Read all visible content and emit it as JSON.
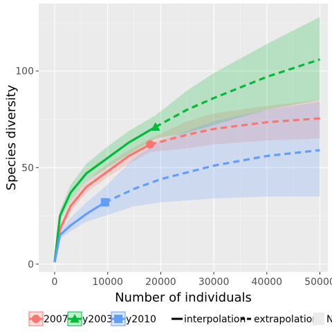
{
  "chart_data": {
    "type": "line",
    "xlabel": "Number of individuals",
    "ylabel": "Species diversity",
    "xlim": [
      -3000,
      51500
    ],
    "ylim": [
      -4,
      135
    ],
    "xticks": [
      0,
      10000,
      20000,
      30000,
      40000,
      50000
    ],
    "xtick_labels": [
      "0",
      "10000",
      "20000",
      "30000",
      "40000",
      "50000"
    ],
    "yticks": [
      0,
      50,
      100
    ],
    "ytick_labels": [
      "0",
      "50",
      "100"
    ],
    "grid": true,
    "legend_position": "bottom",
    "series": [
      {
        "name": "2007",
        "color": "#f8766d",
        "marker": "circle",
        "observed": {
          "x": 18000,
          "y": 62
        },
        "interpolation": [
          [
            0,
            1
          ],
          [
            1000,
            18
          ],
          [
            3000,
            30
          ],
          [
            6000,
            40
          ],
          [
            10000,
            48
          ],
          [
            14000,
            56
          ],
          [
            18000,
            62
          ]
        ],
        "extrapolation": [
          [
            18000,
            62
          ],
          [
            25000,
            67
          ],
          [
            30000,
            70
          ],
          [
            40000,
            73.5
          ],
          [
            50000,
            75.5
          ]
        ],
        "ci_upper": [
          [
            0,
            2
          ],
          [
            1000,
            20
          ],
          [
            3000,
            33
          ],
          [
            6000,
            43
          ],
          [
            10000,
            52
          ],
          [
            14000,
            59
          ],
          [
            18000,
            65
          ],
          [
            25000,
            74
          ],
          [
            30000,
            78
          ],
          [
            40000,
            82
          ],
          [
            50000,
            85
          ]
        ],
        "ci_lower": [
          [
            0,
            0
          ],
          [
            1000,
            16
          ],
          [
            3000,
            27
          ],
          [
            6000,
            37
          ],
          [
            10000,
            45
          ],
          [
            14000,
            52
          ],
          [
            18000,
            58
          ],
          [
            25000,
            60
          ],
          [
            30000,
            62
          ],
          [
            40000,
            64
          ],
          [
            50000,
            65
          ]
        ]
      },
      {
        "name": "y2003",
        "color": "#00ba38",
        "marker": "triangle",
        "observed": {
          "x": 19000,
          "y": 71
        },
        "interpolation": [
          [
            0,
            1
          ],
          [
            1000,
            25
          ],
          [
            3000,
            37
          ],
          [
            6000,
            47
          ],
          [
            10000,
            55
          ],
          [
            14000,
            63
          ],
          [
            19000,
            71
          ]
        ],
        "extrapolation": [
          [
            19000,
            71
          ],
          [
            25000,
            80
          ],
          [
            30000,
            86
          ],
          [
            40000,
            97
          ],
          [
            50000,
            106
          ]
        ],
        "ci_upper": [
          [
            0,
            2
          ],
          [
            1000,
            28
          ],
          [
            3000,
            41
          ],
          [
            6000,
            52
          ],
          [
            10000,
            61
          ],
          [
            14000,
            69
          ],
          [
            19000,
            77
          ],
          [
            25000,
            90
          ],
          [
            30000,
            99
          ],
          [
            40000,
            114
          ],
          [
            50000,
            128
          ]
        ],
        "ci_lower": [
          [
            0,
            0
          ],
          [
            1000,
            22
          ],
          [
            3000,
            33
          ],
          [
            6000,
            43
          ],
          [
            10000,
            50
          ],
          [
            14000,
            57
          ],
          [
            19000,
            65
          ],
          [
            25000,
            68
          ],
          [
            30000,
            72
          ],
          [
            40000,
            80
          ],
          [
            50000,
            85
          ]
        ]
      },
      {
        "name": "y2010",
        "color": "#619cff",
        "marker": "square",
        "observed": {
          "x": 9500,
          "y": 32
        },
        "interpolation": [
          [
            0,
            1
          ],
          [
            1000,
            15
          ],
          [
            3000,
            20
          ],
          [
            6000,
            26
          ],
          [
            9500,
            32
          ]
        ],
        "extrapolation": [
          [
            9500,
            32
          ],
          [
            15000,
            39
          ],
          [
            20000,
            44
          ],
          [
            30000,
            51
          ],
          [
            40000,
            56
          ],
          [
            50000,
            59
          ]
        ],
        "ci_upper": [
          [
            0,
            2
          ],
          [
            1000,
            17
          ],
          [
            3000,
            24
          ],
          [
            6000,
            32
          ],
          [
            9500,
            40
          ],
          [
            15000,
            55
          ],
          [
            20000,
            64
          ],
          [
            30000,
            74
          ],
          [
            40000,
            80
          ],
          [
            50000,
            84
          ]
        ],
        "ci_lower": [
          [
            0,
            0
          ],
          [
            1000,
            13
          ],
          [
            3000,
            17
          ],
          [
            6000,
            22
          ],
          [
            9500,
            25
          ],
          [
            15000,
            30
          ],
          [
            20000,
            32
          ],
          [
            30000,
            34
          ],
          [
            40000,
            35
          ],
          [
            50000,
            35
          ]
        ]
      }
    ],
    "legend": {
      "series_labels": [
        "2007",
        "y2003",
        "y2010"
      ],
      "linetype_labels": [
        "interpolation",
        "extrapolation"
      ],
      "extra_label": "N"
    }
  }
}
